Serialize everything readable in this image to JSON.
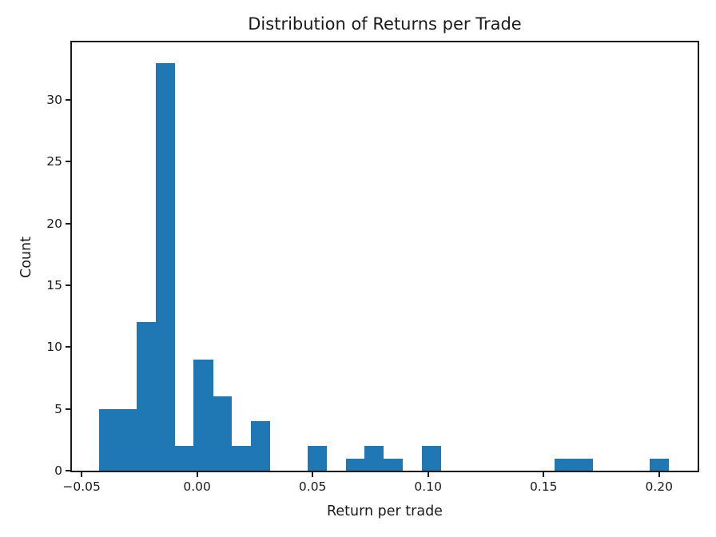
{
  "figure": {
    "background": "#ffffff"
  },
  "chart_data": {
    "type": "bar",
    "subtype": "histogram",
    "title": "Distribution of Returns per Trade",
    "xlabel": "Return per trade",
    "ylabel": "Count",
    "bar_color": "#1f77b4",
    "axis_color": "#1a1a1a",
    "grid": false,
    "legend": null,
    "xlim": [
      -0.0542,
      0.2167
    ],
    "ylim": [
      0,
      34.65
    ],
    "bin_edges": [
      -0.0426,
      -0.03438,
      -0.02615,
      -0.01793,
      -0.00971,
      -0.00148,
      0.00674,
      0.01496,
      0.02319,
      0.03141,
      0.03963,
      0.04786,
      0.05608,
      0.0643,
      0.07253,
      0.08075,
      0.08898,
      0.0972,
      0.10542,
      0.11365,
      0.12187,
      0.13009,
      0.13832,
      0.14654,
      0.15476,
      0.16299,
      0.17121,
      0.17943,
      0.18766,
      0.19588,
      0.2041
    ],
    "counts": [
      5,
      5,
      12,
      33,
      2,
      9,
      6,
      2,
      4,
      0,
      0,
      2,
      0,
      1,
      2,
      1,
      0,
      2,
      0,
      0,
      0,
      0,
      0,
      0,
      1,
      1,
      0,
      0,
      0,
      1
    ],
    "x_ticks": [
      {
        "v": -0.05,
        "label": "−0.05"
      },
      {
        "v": 0.0,
        "label": "0.00"
      },
      {
        "v": 0.05,
        "label": "0.05"
      },
      {
        "v": 0.1,
        "label": "0.10"
      },
      {
        "v": 0.15,
        "label": "0.15"
      },
      {
        "v": 0.2,
        "label": "0.20"
      }
    ],
    "y_ticks": [
      {
        "v": 0,
        "label": "0"
      },
      {
        "v": 5,
        "label": "5"
      },
      {
        "v": 10,
        "label": "10"
      },
      {
        "v": 15,
        "label": "15"
      },
      {
        "v": 20,
        "label": "20"
      },
      {
        "v": 25,
        "label": "25"
      },
      {
        "v": 30,
        "label": "30"
      }
    ]
  }
}
